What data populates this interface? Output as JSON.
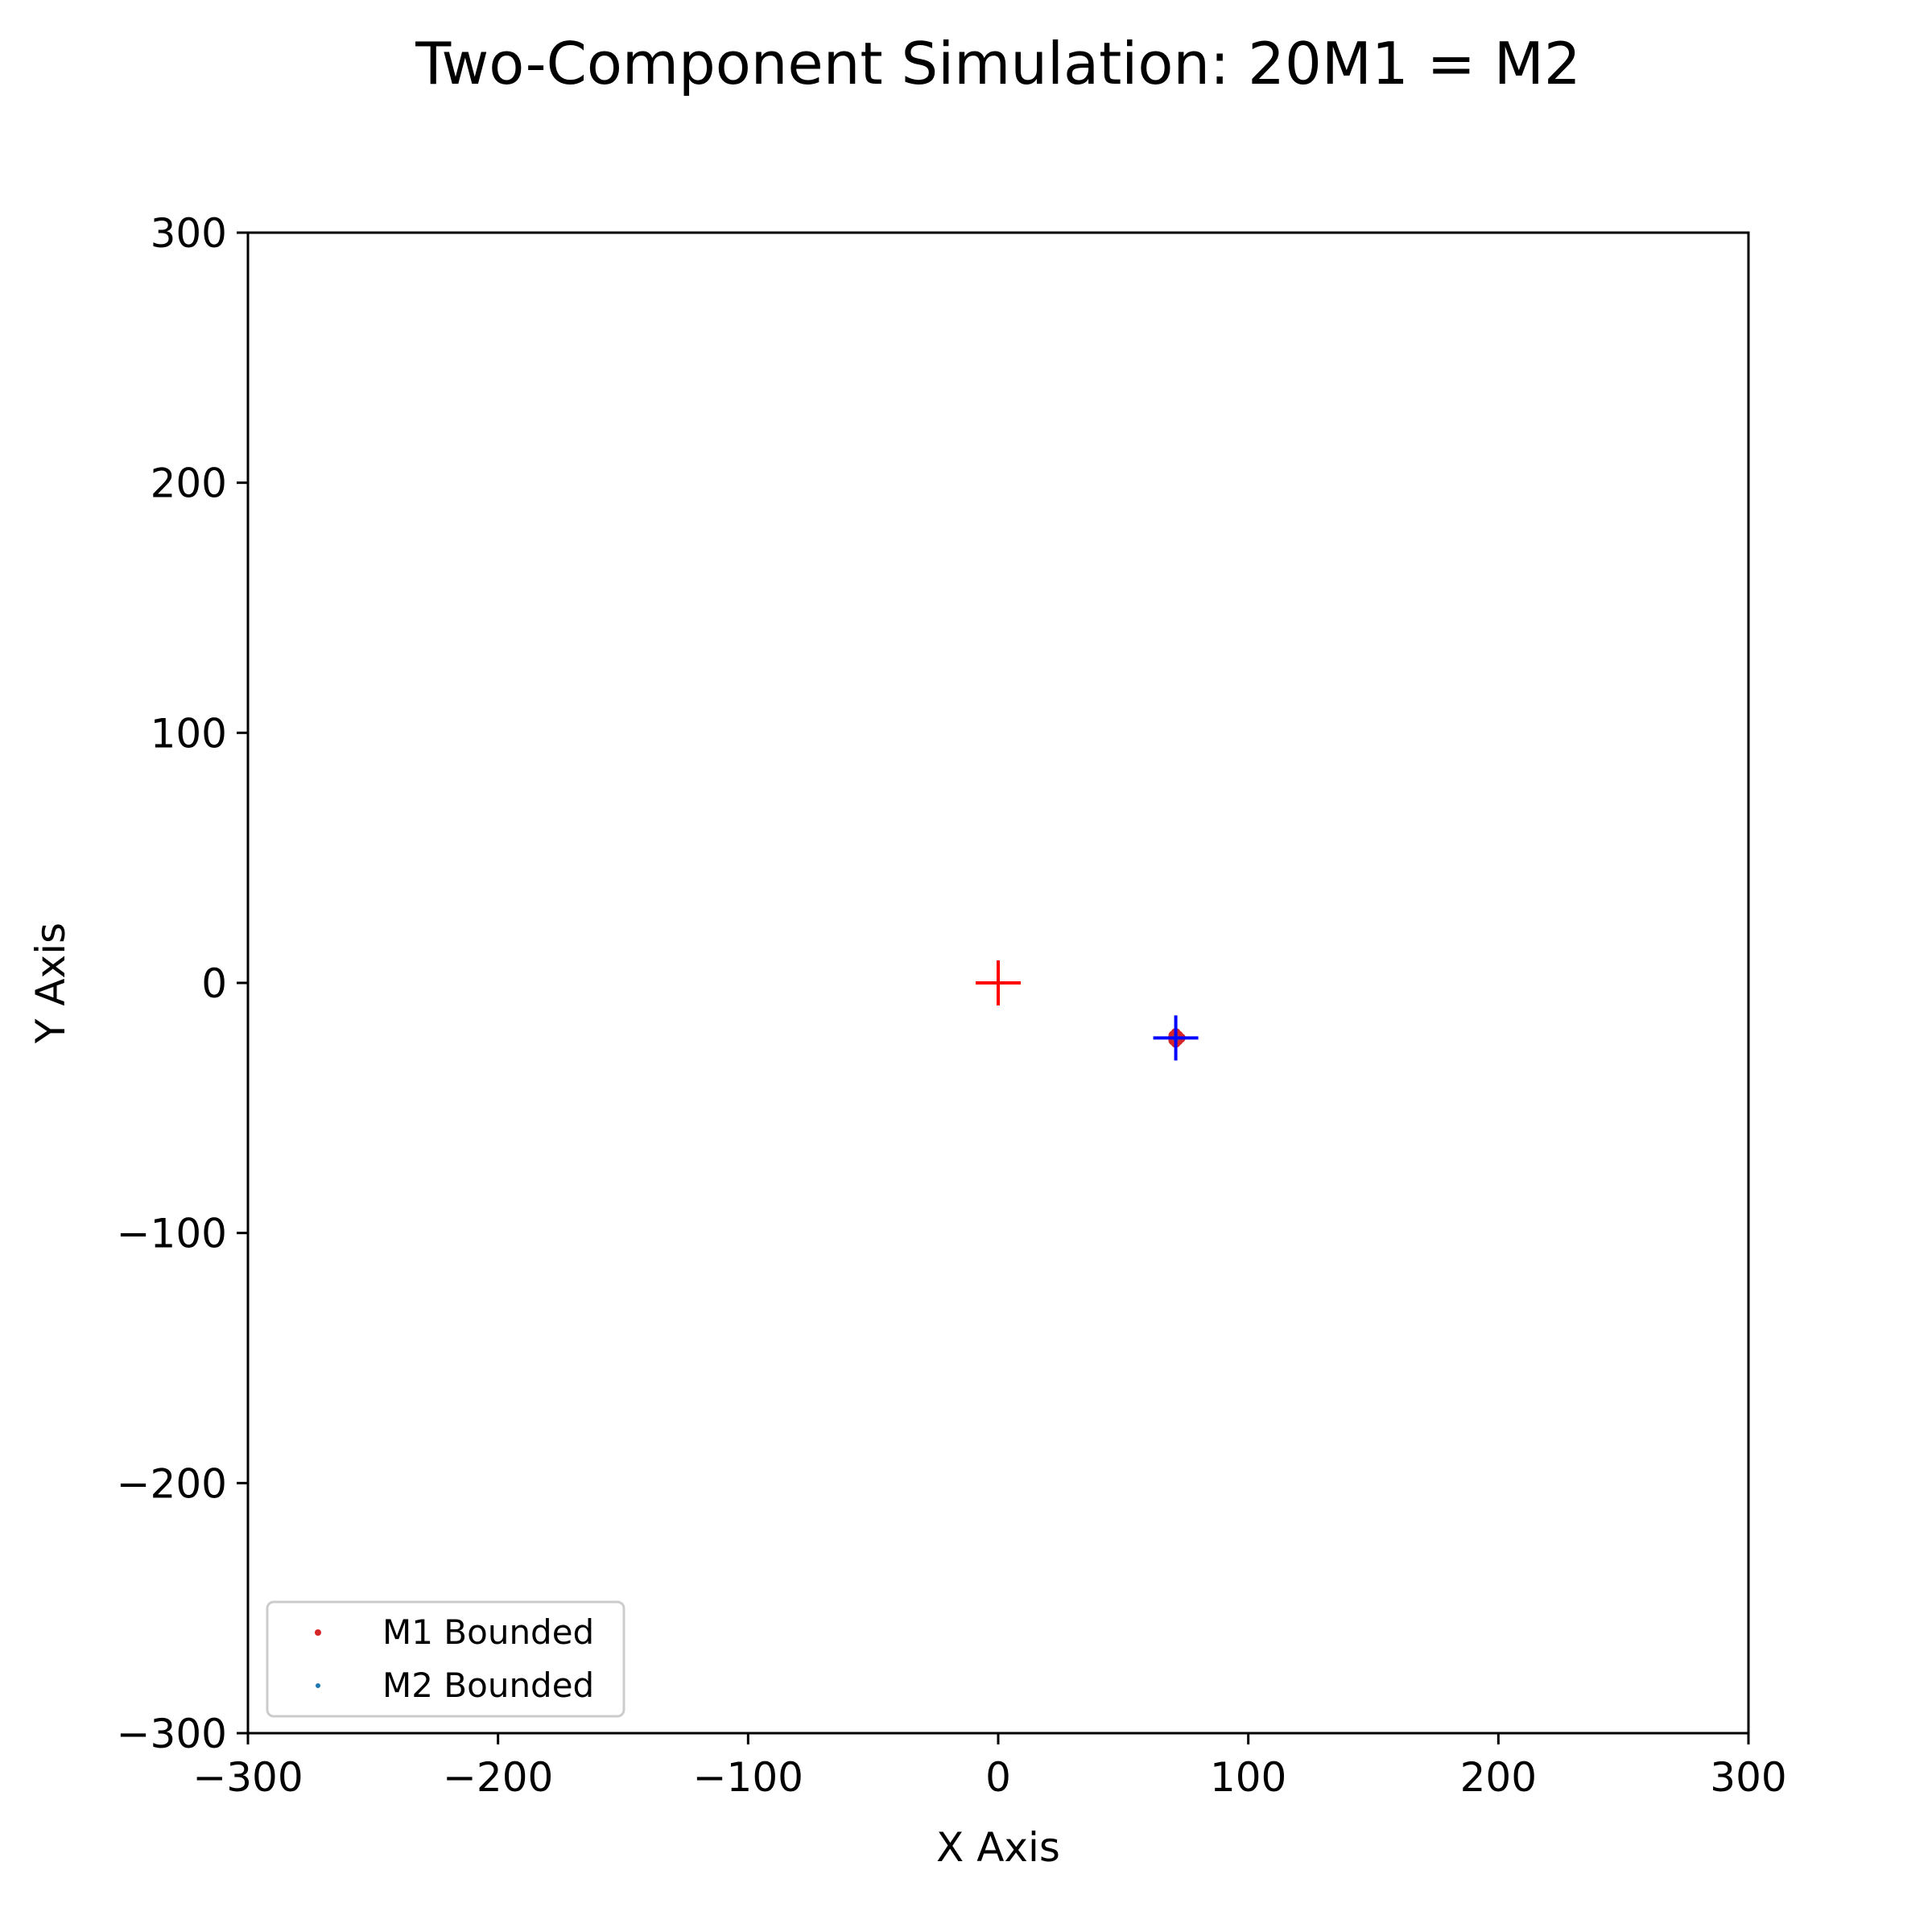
{
  "chart_data": {
    "type": "scatter",
    "title": "Two-Component Simulation: 20M1 = M2",
    "xlabel": "X Axis",
    "ylabel": "Y Axis",
    "xlim": [
      -300,
      300
    ],
    "ylim": [
      -300,
      300
    ],
    "xticks": [
      -300,
      -200,
      -100,
      0,
      100,
      200,
      300
    ],
    "yticks": [
      -300,
      -200,
      -100,
      0,
      100,
      200,
      300
    ],
    "xtick_labels": [
      "−300",
      "−200",
      "−100",
      "0",
      "100",
      "200",
      "300"
    ],
    "ytick_labels": [
      "−300",
      "−200",
      "−100",
      "0",
      "100",
      "200",
      "300"
    ],
    "grid": false,
    "legend_position": "lower-left",
    "series": [
      {
        "name": "M1 Bounded",
        "color": "#d62728",
        "marker": "dot",
        "points": [
          [
            71,
            -21
          ],
          [
            72,
            -22
          ],
          [
            70,
            -22
          ],
          [
            71,
            -23
          ],
          [
            72,
            -21
          ],
          [
            70,
            -21
          ],
          [
            71,
            -24
          ],
          [
            73,
            -22
          ],
          [
            72,
            -23
          ],
          [
            70,
            -23
          ],
          [
            71,
            -20
          ]
        ]
      },
      {
        "name": "M2 Bounded",
        "color": "#1f77b4",
        "marker": "dot",
        "points": [
          [
            71,
            -22
          ]
        ]
      }
    ],
    "markers": [
      {
        "type": "plus",
        "color": "#ff0000",
        "x": 0,
        "y": 0
      },
      {
        "type": "plus",
        "color": "#0000ff",
        "x": 71,
        "y": -22
      }
    ]
  }
}
